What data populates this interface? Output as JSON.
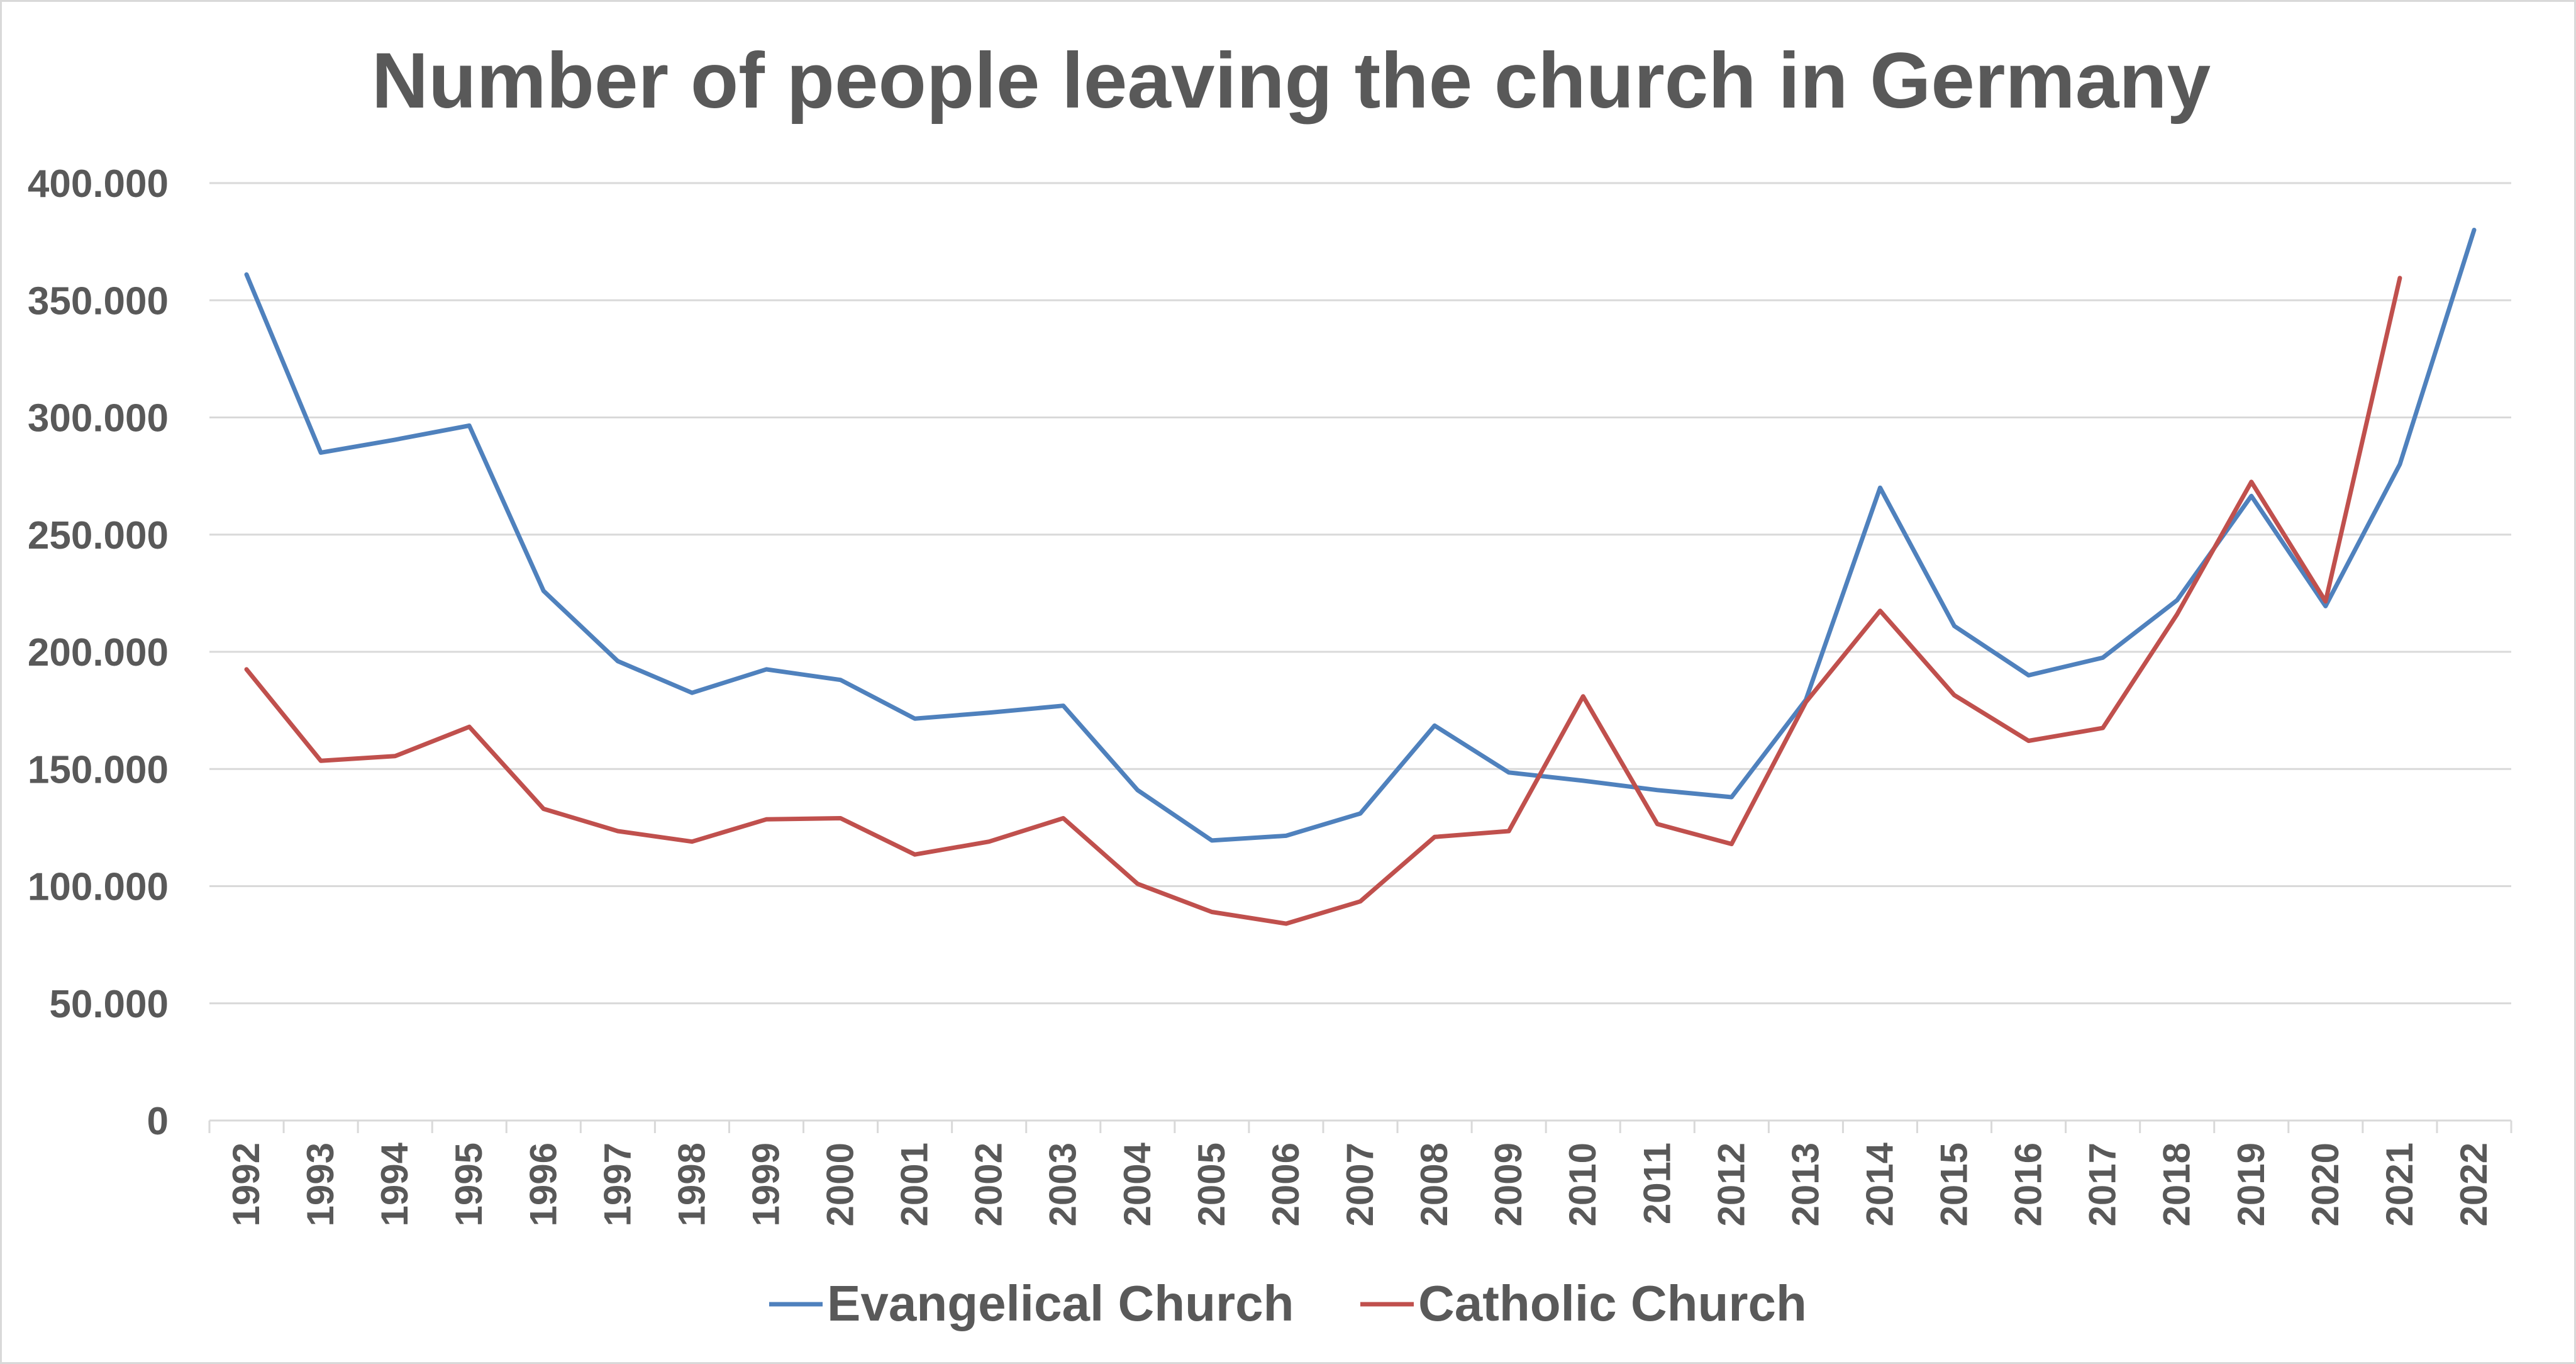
{
  "chart_data": {
    "type": "line",
    "title": "Number of people leaving the church in Germany",
    "xlabel": "",
    "ylabel": "",
    "ylim": [
      0,
      400000
    ],
    "yticks": [
      0,
      50000,
      100000,
      150000,
      200000,
      250000,
      300000,
      350000,
      400000
    ],
    "ytick_labels": [
      "0",
      "50.000",
      "100.000",
      "150.000",
      "200.000",
      "250.000",
      "300.000",
      "350.000",
      "400.000"
    ],
    "categories": [
      "1992",
      "1993",
      "1994",
      "1995",
      "1996",
      "1997",
      "1998",
      "1999",
      "2000",
      "2001",
      "2002",
      "2003",
      "2004",
      "2005",
      "2006",
      "2007",
      "2008",
      "2009",
      "2010",
      "2011",
      "2012",
      "2013",
      "2014",
      "2015",
      "2016",
      "2017",
      "2018",
      "2019",
      "2020",
      "2021",
      "2022"
    ],
    "grid": "horizontal",
    "legend_position": "bottom",
    "series": [
      {
        "name": "Evangelical Church",
        "color": "#4f81bd",
        "values": [
          361000,
          285000,
          290500,
          296500,
          226000,
          196000,
          182500,
          192500,
          188000,
          171500,
          174000,
          177000,
          141000,
          119500,
          121500,
          131000,
          168500,
          148500,
          145000,
          141000,
          138000,
          179500,
          270000,
          211000,
          190000,
          197500,
          222000,
          266500,
          219500,
          280000,
          380000
        ]
      },
      {
        "name": "Catholic Church",
        "color": "#c0504d",
        "values": [
          192500,
          153500,
          155500,
          168000,
          133000,
          123500,
          119000,
          128500,
          129000,
          113500,
          119000,
          129000,
          101000,
          89000,
          84000,
          93500,
          121000,
          123500,
          181000,
          126500,
          118000,
          178500,
          217500,
          181500,
          162000,
          167500,
          216000,
          272500,
          221500,
          359500,
          null
        ]
      }
    ]
  }
}
